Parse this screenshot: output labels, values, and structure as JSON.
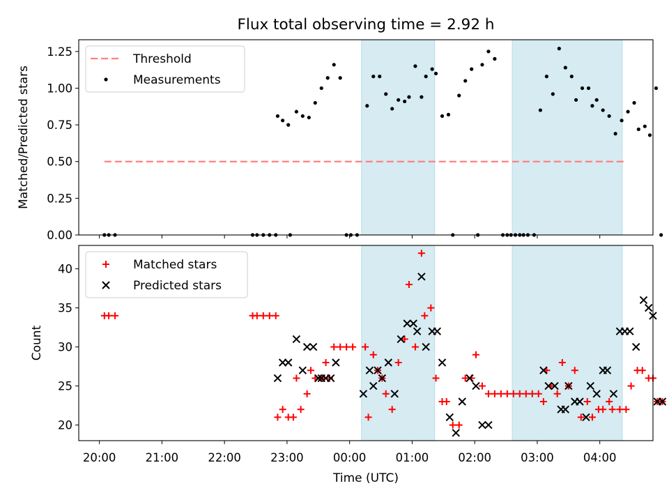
{
  "title": "Flux total observing time = 2.92 h",
  "xlabel": "Time (UTC)",
  "x_ticks": [
    "20:00",
    "21:00",
    "22:00",
    "23:00",
    "00:00",
    "01:00",
    "02:00",
    "03:00",
    "04:00"
  ],
  "colors": {
    "threshold": "#ff7f7f",
    "measurement": "#000000",
    "matched": "#ff0000",
    "predicted": "#000000",
    "shade": "#add8e6"
  },
  "chart_data": [
    {
      "type": "scatter",
      "ylabel": "Matched/Predicted stars",
      "ylim": [
        0,
        1.33
      ],
      "y_ticks": [
        "0.00",
        "0.25",
        "0.50",
        "0.75",
        "1.00",
        "1.25"
      ],
      "x_unit": "hours since 20:00 UTC",
      "xlim": [
        -0.33,
        8.85
      ],
      "shaded_x_ranges": [
        [
          4.19,
          5.36
        ],
        [
          6.6,
          8.36
        ]
      ],
      "threshold": {
        "name": "Threshold",
        "y": 0.5,
        "x_range": [
          0.08,
          8.42
        ]
      },
      "legend": {
        "position": "upper left",
        "entries": [
          "Threshold",
          "Measurements"
        ]
      },
      "series": [
        {
          "name": "Measurements",
          "points": [
            [
              0.08,
              0.0
            ],
            [
              0.15,
              0.0
            ],
            [
              0.25,
              0.0
            ],
            [
              2.45,
              0.0
            ],
            [
              2.52,
              0.0
            ],
            [
              2.62,
              0.0
            ],
            [
              2.72,
              0.0
            ],
            [
              2.82,
              0.0
            ],
            [
              2.85,
              0.81
            ],
            [
              2.93,
              0.78
            ],
            [
              3.02,
              0.75
            ],
            [
              3.05,
              0.0
            ],
            [
              3.15,
              0.84
            ],
            [
              3.25,
              0.81
            ],
            [
              3.35,
              0.8
            ],
            [
              3.45,
              0.9
            ],
            [
              3.55,
              1.0
            ],
            [
              3.65,
              1.07
            ],
            [
              3.75,
              1.16
            ],
            [
              3.85,
              1.07
            ],
            [
              3.95,
              0.0
            ],
            [
              4.02,
              0.0
            ],
            [
              4.12,
              0.0
            ],
            [
              4.28,
              0.88
            ],
            [
              4.38,
              1.08
            ],
            [
              4.48,
              1.08
            ],
            [
              4.58,
              0.96
            ],
            [
              4.68,
              0.86
            ],
            [
              4.78,
              0.92
            ],
            [
              4.88,
              0.91
            ],
            [
              4.95,
              0.94
            ],
            [
              5.05,
              1.15
            ],
            [
              5.15,
              0.94
            ],
            [
              5.22,
              1.08
            ],
            [
              5.32,
              1.13
            ],
            [
              5.38,
              1.1
            ],
            [
              5.48,
              0.81
            ],
            [
              5.58,
              0.82
            ],
            [
              5.65,
              0.0
            ],
            [
              5.75,
              0.95
            ],
            [
              5.85,
              1.05
            ],
            [
              5.95,
              1.13
            ],
            [
              6.05,
              0.0
            ],
            [
              6.12,
              1.16
            ],
            [
              6.22,
              1.25
            ],
            [
              6.32,
              1.2
            ],
            [
              6.45,
              0.0
            ],
            [
              6.52,
              0.0
            ],
            [
              6.58,
              0.0
            ],
            [
              6.65,
              0.0
            ],
            [
              6.72,
              0.0
            ],
            [
              6.78,
              0.0
            ],
            [
              6.85,
              0.0
            ],
            [
              6.95,
              0.0
            ],
            [
              7.05,
              0.85
            ],
            [
              7.15,
              1.08
            ],
            [
              7.25,
              0.96
            ],
            [
              7.35,
              1.27
            ],
            [
              7.45,
              1.14
            ],
            [
              7.55,
              1.08
            ],
            [
              7.62,
              0.92
            ],
            [
              7.72,
              1.0
            ],
            [
              7.82,
              1.0
            ],
            [
              7.88,
              0.88
            ],
            [
              7.95,
              0.92
            ],
            [
              8.05,
              0.85
            ],
            [
              8.15,
              0.81
            ],
            [
              8.25,
              0.69
            ],
            [
              8.35,
              0.78
            ],
            [
              8.45,
              0.84
            ],
            [
              8.55,
              0.9
            ],
            [
              8.62,
              0.72
            ],
            [
              8.72,
              0.74
            ],
            [
              8.8,
              0.68
            ],
            [
              8.9,
              1.0
            ],
            [
              8.98,
              0.0
            ]
          ]
        }
      ]
    },
    {
      "type": "scatter",
      "ylabel": "Count",
      "ylim": [
        18,
        43
      ],
      "y_ticks": [
        "20",
        "25",
        "30",
        "35",
        "40"
      ],
      "x_unit": "hours since 20:00 UTC",
      "xlim": [
        -0.33,
        8.85
      ],
      "shaded_x_ranges": [
        [
          4.19,
          5.36
        ],
        [
          6.6,
          8.36
        ]
      ],
      "legend": {
        "position": "upper left",
        "entries": [
          "Matched stars",
          "Predicted stars"
        ]
      },
      "series": [
        {
          "name": "Matched stars",
          "points": [
            [
              0.08,
              34
            ],
            [
              0.15,
              34
            ],
            [
              0.25,
              34
            ],
            [
              2.45,
              34
            ],
            [
              2.52,
              34
            ],
            [
              2.62,
              34
            ],
            [
              2.72,
              34
            ],
            [
              2.82,
              34
            ],
            [
              2.85,
              21
            ],
            [
              2.93,
              22
            ],
            [
              3.02,
              21
            ],
            [
              3.1,
              21
            ],
            [
              3.15,
              26
            ],
            [
              3.22,
              22
            ],
            [
              3.32,
              24
            ],
            [
              3.38,
              27
            ],
            [
              3.45,
              26
            ],
            [
              3.55,
              26
            ],
            [
              3.62,
              28
            ],
            [
              3.68,
              26
            ],
            [
              3.75,
              30
            ],
            [
              3.85,
              30
            ],
            [
              3.95,
              30
            ],
            [
              4.05,
              30
            ],
            [
              4.25,
              30
            ],
            [
              4.3,
              21
            ],
            [
              4.38,
              29
            ],
            [
              4.45,
              27
            ],
            [
              4.52,
              26
            ],
            [
              4.58,
              24
            ],
            [
              4.68,
              22
            ],
            [
              4.78,
              28
            ],
            [
              4.88,
              31
            ],
            [
              4.95,
              38
            ],
            [
              5.05,
              30
            ],
            [
              5.15,
              42
            ],
            [
              5.2,
              34
            ],
            [
              5.3,
              35
            ],
            [
              5.38,
              26
            ],
            [
              5.48,
              23
            ],
            [
              5.55,
              23
            ],
            [
              5.65,
              20
            ],
            [
              5.75,
              20
            ],
            [
              5.85,
              26
            ],
            [
              5.95,
              26
            ],
            [
              6.02,
              29
            ],
            [
              6.12,
              25
            ],
            [
              6.22,
              24
            ],
            [
              6.32,
              24
            ],
            [
              6.42,
              24
            ],
            [
              6.52,
              24
            ],
            [
              6.62,
              24
            ],
            [
              6.72,
              24
            ],
            [
              6.82,
              24
            ],
            [
              6.92,
              24
            ],
            [
              7.02,
              24
            ],
            [
              7.1,
              23
            ],
            [
              7.15,
              27
            ],
            [
              7.22,
              25
            ],
            [
              7.32,
              24
            ],
            [
              7.4,
              28
            ],
            [
              7.5,
              25
            ],
            [
              7.6,
              27
            ],
            [
              7.7,
              21
            ],
            [
              7.8,
              23
            ],
            [
              7.88,
              21
            ],
            [
              7.98,
              22
            ],
            [
              8.05,
              22
            ],
            [
              8.15,
              23
            ],
            [
              8.2,
              22
            ],
            [
              8.32,
              22
            ],
            [
              8.42,
              22
            ],
            [
              8.5,
              25
            ],
            [
              8.6,
              27
            ],
            [
              8.68,
              27
            ],
            [
              8.78,
              26
            ],
            [
              8.85,
              26
            ],
            [
              8.92,
              23
            ],
            [
              9.0,
              23
            ]
          ]
        },
        {
          "name": "Predicted stars",
          "points": [
            [
              2.85,
              26
            ],
            [
              2.93,
              28
            ],
            [
              3.02,
              28
            ],
            [
              3.15,
              31
            ],
            [
              3.25,
              27
            ],
            [
              3.32,
              30
            ],
            [
              3.42,
              30
            ],
            [
              3.5,
              26
            ],
            [
              3.55,
              26
            ],
            [
              3.62,
              26
            ],
            [
              3.7,
              26
            ],
            [
              3.78,
              28
            ],
            [
              4.22,
              24
            ],
            [
              4.32,
              27
            ],
            [
              4.38,
              25
            ],
            [
              4.45,
              27
            ],
            [
              4.52,
              26
            ],
            [
              4.62,
              28
            ],
            [
              4.72,
              24
            ],
            [
              4.82,
              31
            ],
            [
              4.92,
              33
            ],
            [
              5.02,
              33
            ],
            [
              5.08,
              32
            ],
            [
              5.15,
              39
            ],
            [
              5.22,
              30
            ],
            [
              5.32,
              32
            ],
            [
              5.4,
              32
            ],
            [
              5.48,
              28
            ],
            [
              5.6,
              21
            ],
            [
              5.7,
              19
            ],
            [
              5.8,
              23
            ],
            [
              5.92,
              26
            ],
            [
              6.02,
              25
            ],
            [
              6.12,
              20
            ],
            [
              6.22,
              20
            ],
            [
              7.1,
              27
            ],
            [
              7.18,
              25
            ],
            [
              7.28,
              25
            ],
            [
              7.38,
              22
            ],
            [
              7.45,
              22
            ],
            [
              7.5,
              25
            ],
            [
              7.6,
              23
            ],
            [
              7.68,
              23
            ],
            [
              7.78,
              21
            ],
            [
              7.85,
              25
            ],
            [
              7.95,
              24
            ],
            [
              8.05,
              27
            ],
            [
              8.12,
              27
            ],
            [
              8.22,
              24
            ],
            [
              8.32,
              32
            ],
            [
              8.4,
              32
            ],
            [
              8.48,
              32
            ],
            [
              8.58,
              30
            ],
            [
              8.7,
              36
            ],
            [
              8.78,
              35
            ],
            [
              8.85,
              34
            ],
            [
              8.92,
              23
            ],
            [
              9.0,
              23
            ]
          ]
        }
      ]
    }
  ]
}
